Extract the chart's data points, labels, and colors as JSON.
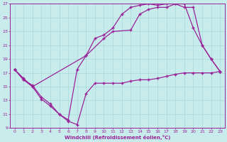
{
  "xlabel": "Windchill (Refroidissement éolien,°C)",
  "xlim": [
    -0.5,
    23.5
  ],
  "ylim": [
    9,
    27
  ],
  "xticks": [
    0,
    1,
    2,
    3,
    4,
    5,
    6,
    7,
    8,
    9,
    10,
    11,
    12,
    13,
    14,
    15,
    16,
    17,
    18,
    19,
    20,
    21,
    22,
    23
  ],
  "yticks": [
    9,
    11,
    13,
    15,
    17,
    19,
    21,
    23,
    25,
    27
  ],
  "bg_color": "#c8ecec",
  "line_color": "#992299",
  "grid_color": "#a8d8d8",
  "line1_x": [
    0,
    1,
    2,
    3,
    4,
    5,
    6,
    7,
    8,
    9,
    10,
    11,
    12,
    13,
    14,
    15,
    16,
    17,
    18,
    19,
    20,
    21,
    22,
    23
  ],
  "line1_y": [
    17.5,
    16.2,
    15.0,
    13.2,
    12.2,
    11.0,
    10.0,
    9.5,
    14.0,
    15.5,
    15.5,
    15.5,
    15.5,
    15.8,
    16.0,
    16.0,
    16.2,
    16.5,
    16.8,
    17.0,
    17.0,
    17.0,
    17.0,
    17.2
  ],
  "line2_x": [
    0,
    1,
    2,
    3,
    4,
    5,
    6,
    7,
    8,
    9,
    10,
    11,
    12,
    13,
    14,
    15,
    16,
    17,
    18,
    19,
    20,
    21,
    22,
    23
  ],
  "line2_y": [
    17.5,
    16.0,
    15.2,
    13.5,
    12.5,
    11.0,
    10.2,
    17.5,
    19.5,
    22.0,
    22.5,
    23.5,
    25.5,
    26.5,
    26.8,
    27.0,
    26.8,
    27.0,
    27.0,
    26.5,
    26.5,
    21.0,
    19.0,
    17.2
  ],
  "line3_x": [
    0,
    1,
    2,
    8,
    10,
    11,
    13,
    14,
    15,
    16,
    17,
    18,
    19,
    20,
    21,
    22,
    23
  ],
  "line3_y": [
    17.5,
    16.0,
    15.0,
    19.5,
    22.0,
    23.0,
    23.2,
    25.5,
    26.2,
    26.5,
    26.5,
    27.0,
    27.0,
    23.5,
    21.0,
    19.0,
    17.2
  ],
  "marker": "+",
  "markersize": 3.5,
  "linewidth": 0.9
}
